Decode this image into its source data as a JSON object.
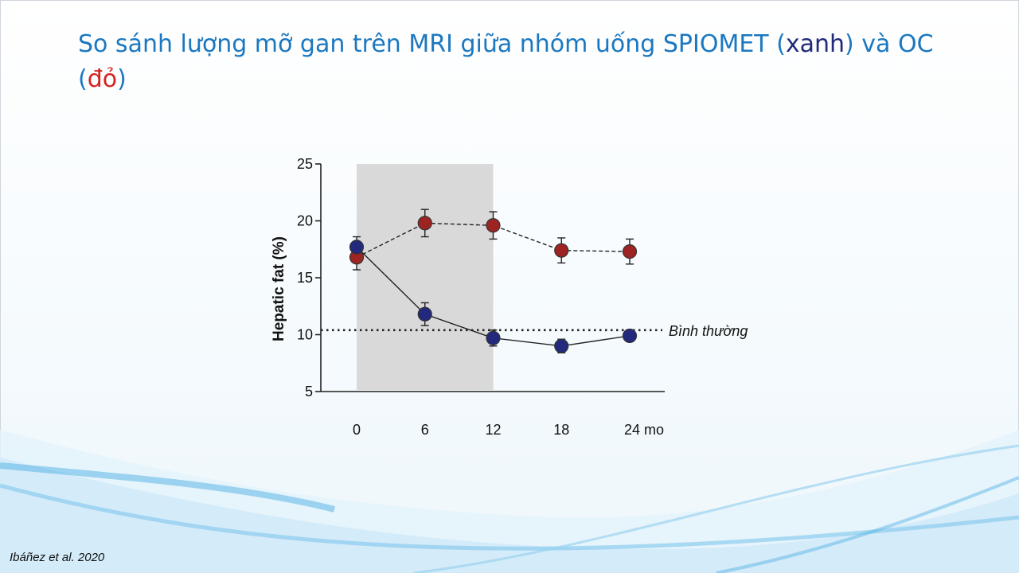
{
  "slide": {
    "title_part1": "So sánh lượng mỡ gan trên MRI giữa nhóm uống SPIOMET (",
    "title_blue_word": "xanh",
    "title_part2": ") và OC (",
    "title_red_word": "đỏ",
    "title_part3": ")",
    "citation": "Ibáñez et al. 2020"
  },
  "colors": {
    "title": "#1b78c0",
    "spiomet": "#232a7e",
    "oc": "#9e2424",
    "shade": "#d9d9d9"
  },
  "chart_data": {
    "type": "line",
    "ylabel": "Hepatic fat (%)",
    "x": [
      0,
      6,
      12,
      18,
      24
    ],
    "x_tick_labels": [
      "0",
      "6",
      "12",
      "18",
      "24 mo"
    ],
    "y_ticks": [
      5,
      10,
      15,
      20,
      25
    ],
    "ylim": [
      5,
      25
    ],
    "xlim": [
      -2,
      28
    ],
    "shaded_interval_x": [
      0,
      12
    ],
    "series": [
      {
        "key": "oc",
        "color": "#9e2424",
        "line_style": "dashed",
        "values": [
          16.8,
          19.8,
          19.6,
          17.4,
          17.3
        ],
        "error": [
          1.1,
          1.2,
          1.2,
          1.1,
          1.1
        ]
      },
      {
        "key": "spiomet",
        "color": "#232a7e",
        "line_style": "solid",
        "values": [
          17.7,
          11.8,
          9.7,
          9.0,
          9.9
        ],
        "error": [
          0.9,
          1.0,
          0.7,
          0.6,
          0.5
        ]
      }
    ],
    "reference_line": {
      "y": 10.4,
      "style": "dotted",
      "label": "Bình thường"
    },
    "grid": false,
    "legend": "none"
  }
}
